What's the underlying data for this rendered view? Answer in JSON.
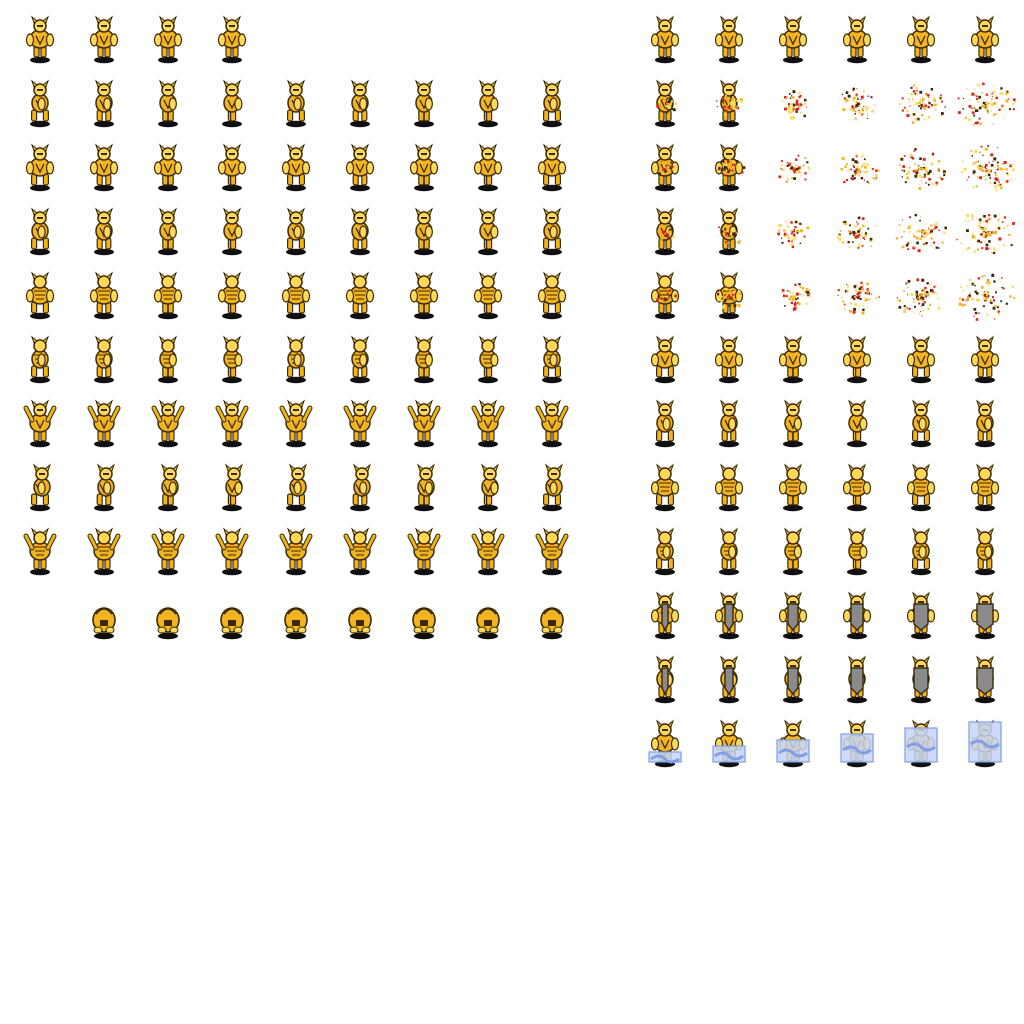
{
  "palette": {
    "background": "#ffffff",
    "gold": "#f2b321",
    "gold_light": "#ffd85a",
    "dark": "#3a2a08",
    "shadow": "#111111",
    "red": "#d8241c",
    "blue": "#7f9ee6",
    "blue_light": "#c6d5f7",
    "steel": "#8a8a8a"
  },
  "left_block": {
    "sprite": "golden-armored-warrior",
    "rows": [
      {
        "pose": "idle-front",
        "frames": 4,
        "start_col": 0
      },
      {
        "pose": "walk-side",
        "frames": 9,
        "start_col": 0
      },
      {
        "pose": "walk-front",
        "frames": 9,
        "start_col": 0
      },
      {
        "pose": "walk-side-alt",
        "frames": 9,
        "start_col": 0
      },
      {
        "pose": "walk-back",
        "frames": 9,
        "start_col": 0
      },
      {
        "pose": "walk-side-back",
        "frames": 9,
        "start_col": 0
      },
      {
        "pose": "arms-raised-front",
        "frames": 9,
        "start_col": 0
      },
      {
        "pose": "walk-side-lean",
        "frames": 9,
        "start_col": 0
      },
      {
        "pose": "arms-raised-back",
        "frames": 9,
        "start_col": 0
      },
      {
        "pose": "crouch",
        "frames": 8,
        "start_col": 1
      }
    ]
  },
  "right_block": {
    "sprite": "golden-armored-warrior",
    "rows": [
      {
        "pose": "idle-front",
        "frames": 6,
        "effect": "none"
      },
      {
        "pose": "disintegrate-side",
        "frames": 6,
        "effect": "red-particles"
      },
      {
        "pose": "disintegrate-front",
        "frames": 6,
        "effect": "red-particles"
      },
      {
        "pose": "disintegrate-side-alt",
        "frames": 6,
        "effect": "red-particles"
      },
      {
        "pose": "disintegrate-back",
        "frames": 6,
        "effect": "red-particles"
      },
      {
        "pose": "attack-front",
        "frames": 6,
        "effect": "none"
      },
      {
        "pose": "attack-side",
        "frames": 6,
        "effect": "none"
      },
      {
        "pose": "attack-back",
        "frames": 6,
        "effect": "none"
      },
      {
        "pose": "attack-side-back",
        "frames": 6,
        "effect": "none"
      },
      {
        "pose": "shield-front",
        "frames": 6,
        "effect": "shield"
      },
      {
        "pose": "shield-side",
        "frames": 6,
        "effect": "shield"
      },
      {
        "pose": "freeze",
        "frames": 6,
        "effect": "ice"
      }
    ]
  }
}
